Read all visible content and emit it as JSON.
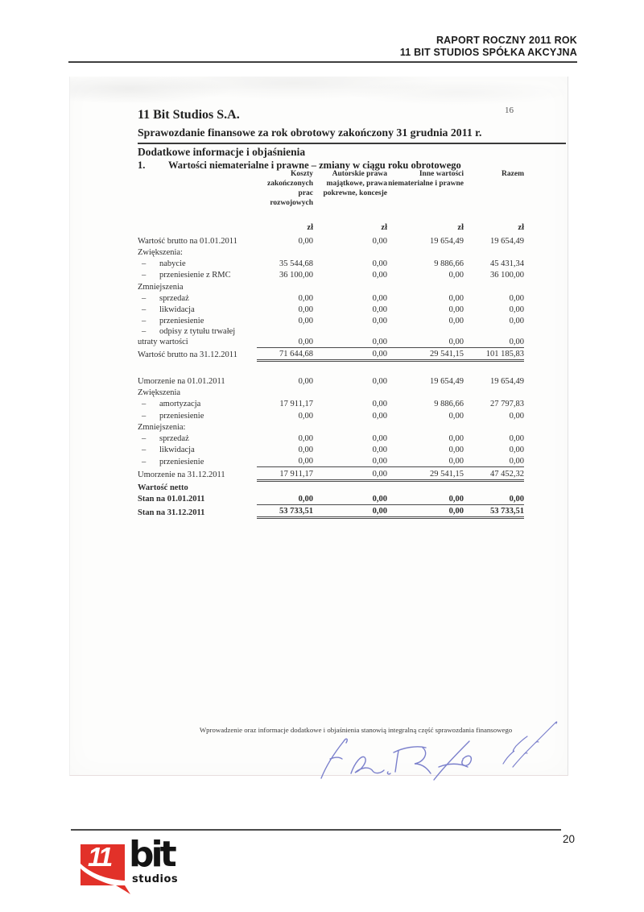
{
  "page": {
    "header": {
      "line1": "RAPORT ROCZNY 2011 ROK",
      "line2": "11 BIT STUDIOS SPÓŁKA AKCYJNA"
    },
    "footer": {
      "page_number": "20"
    }
  },
  "logo": {
    "number": "11",
    "word": "bit",
    "sub": "studios",
    "red": "#e23129",
    "black": "#141414"
  },
  "scan": {
    "page_number": "16",
    "title": "11 Bit Studios S.A.",
    "subtitle": "Sprawozdanie finansowe za rok obrotowy zakończony 31 grudnia 2011 r.",
    "section_heading": "Dodatkowe informacje i objaśnienia",
    "item_number": "1.",
    "item_title": "Wartości niematerialne i prawne – zmiany w ciągu roku obrotowego",
    "ink_color": "#7b80cc",
    "footnote": "Wprowadzenie oraz informacje dodatkowe i objaśnienia stanowią integralną część sprawozdania finansowego",
    "table": {
      "dash_glyph": "–",
      "column_headers": [
        "Koszty zakończonych prac rozwojowych",
        "Autorskie prawa majątkowe, prawa pokrewne, koncesje",
        "Inne wartości niematerialne i prawne",
        "Razem"
      ],
      "unit_labels": [
        "zł",
        "zł",
        "zł",
        "zł"
      ],
      "rows": [
        {
          "label": "Wartość brutto na 01.01.2011",
          "values": [
            "0,00",
            "0,00",
            "19 654,49",
            "19 654,49"
          ]
        },
        {
          "label": "Zwiększenia:",
          "values": null
        },
        {
          "label": "nabycie",
          "dash": true,
          "values": [
            "35 544,68",
            "0,00",
            "9 886,66",
            "45 431,34"
          ]
        },
        {
          "label": "przeniesienie z RMC",
          "dash": true,
          "values": [
            "36 100,00",
            "0,00",
            "0,00",
            "36 100,00"
          ]
        },
        {
          "label": "Zmniejszenia",
          "values": null
        },
        {
          "label": "sprzedaż",
          "dash": true,
          "values": [
            "0,00",
            "0,00",
            "0,00",
            "0,00"
          ]
        },
        {
          "label": "likwidacja",
          "dash": true,
          "values": [
            "0,00",
            "0,00",
            "0,00",
            "0,00"
          ]
        },
        {
          "label": "przeniesienie",
          "dash": true,
          "values": [
            "0,00",
            "0,00",
            "0,00",
            "0,00"
          ]
        },
        {
          "label": "odpisy z tytułu trwałej utraty wartości",
          "dash": true,
          "values": [
            "0,00",
            "0,00",
            "0,00",
            "0,00"
          ],
          "rule": "below"
        },
        {
          "label": "Wartość brutto na 31.12.2011",
          "values": [
            "71 644,68",
            "0,00",
            "29 541,15",
            "101 185,83"
          ],
          "rule": "total"
        },
        {
          "type": "spacer"
        },
        {
          "label": "Umorzenie na 01.01.2011",
          "values": [
            "0,00",
            "0,00",
            "19 654,49",
            "19 654,49"
          ]
        },
        {
          "label": "Zwiększenia",
          "values": null
        },
        {
          "label": "amortyzacja",
          "dash": true,
          "values": [
            "17 911,17",
            "0,00",
            "9 886,66",
            "27 797,83"
          ]
        },
        {
          "label": "przeniesienie",
          "dash": true,
          "values": [
            "0,00",
            "0,00",
            "0,00",
            "0,00"
          ]
        },
        {
          "label": "Zmniejszenia:",
          "values": null
        },
        {
          "label": "sprzedaż",
          "dash": true,
          "values": [
            "0,00",
            "0,00",
            "0,00",
            "0,00"
          ]
        },
        {
          "label": "likwidacja",
          "dash": true,
          "values": [
            "0,00",
            "0,00",
            "0,00",
            "0,00"
          ]
        },
        {
          "label": "przeniesienie",
          "dash": true,
          "values": [
            "0,00",
            "0,00",
            "0,00",
            "0,00"
          ]
        },
        {
          "label": "Umorzenie na 31.12.2011",
          "values": [
            "17 911,17",
            "0,00",
            "29 541,15",
            "47 452,32"
          ],
          "rule": "total"
        },
        {
          "label": "Wartość netto",
          "bold": true,
          "values": null
        },
        {
          "label": "Stan na 01.01.2011",
          "bold": true,
          "values": [
            "0,00",
            "0,00",
            "0,00",
            "0,00"
          ],
          "rule": "below"
        },
        {
          "label": "Stan na 31.12.2011",
          "bold": true,
          "values": [
            "53 733,51",
            "0,00",
            "0,00",
            "53 733,51"
          ],
          "rule": "dbl"
        }
      ]
    }
  }
}
